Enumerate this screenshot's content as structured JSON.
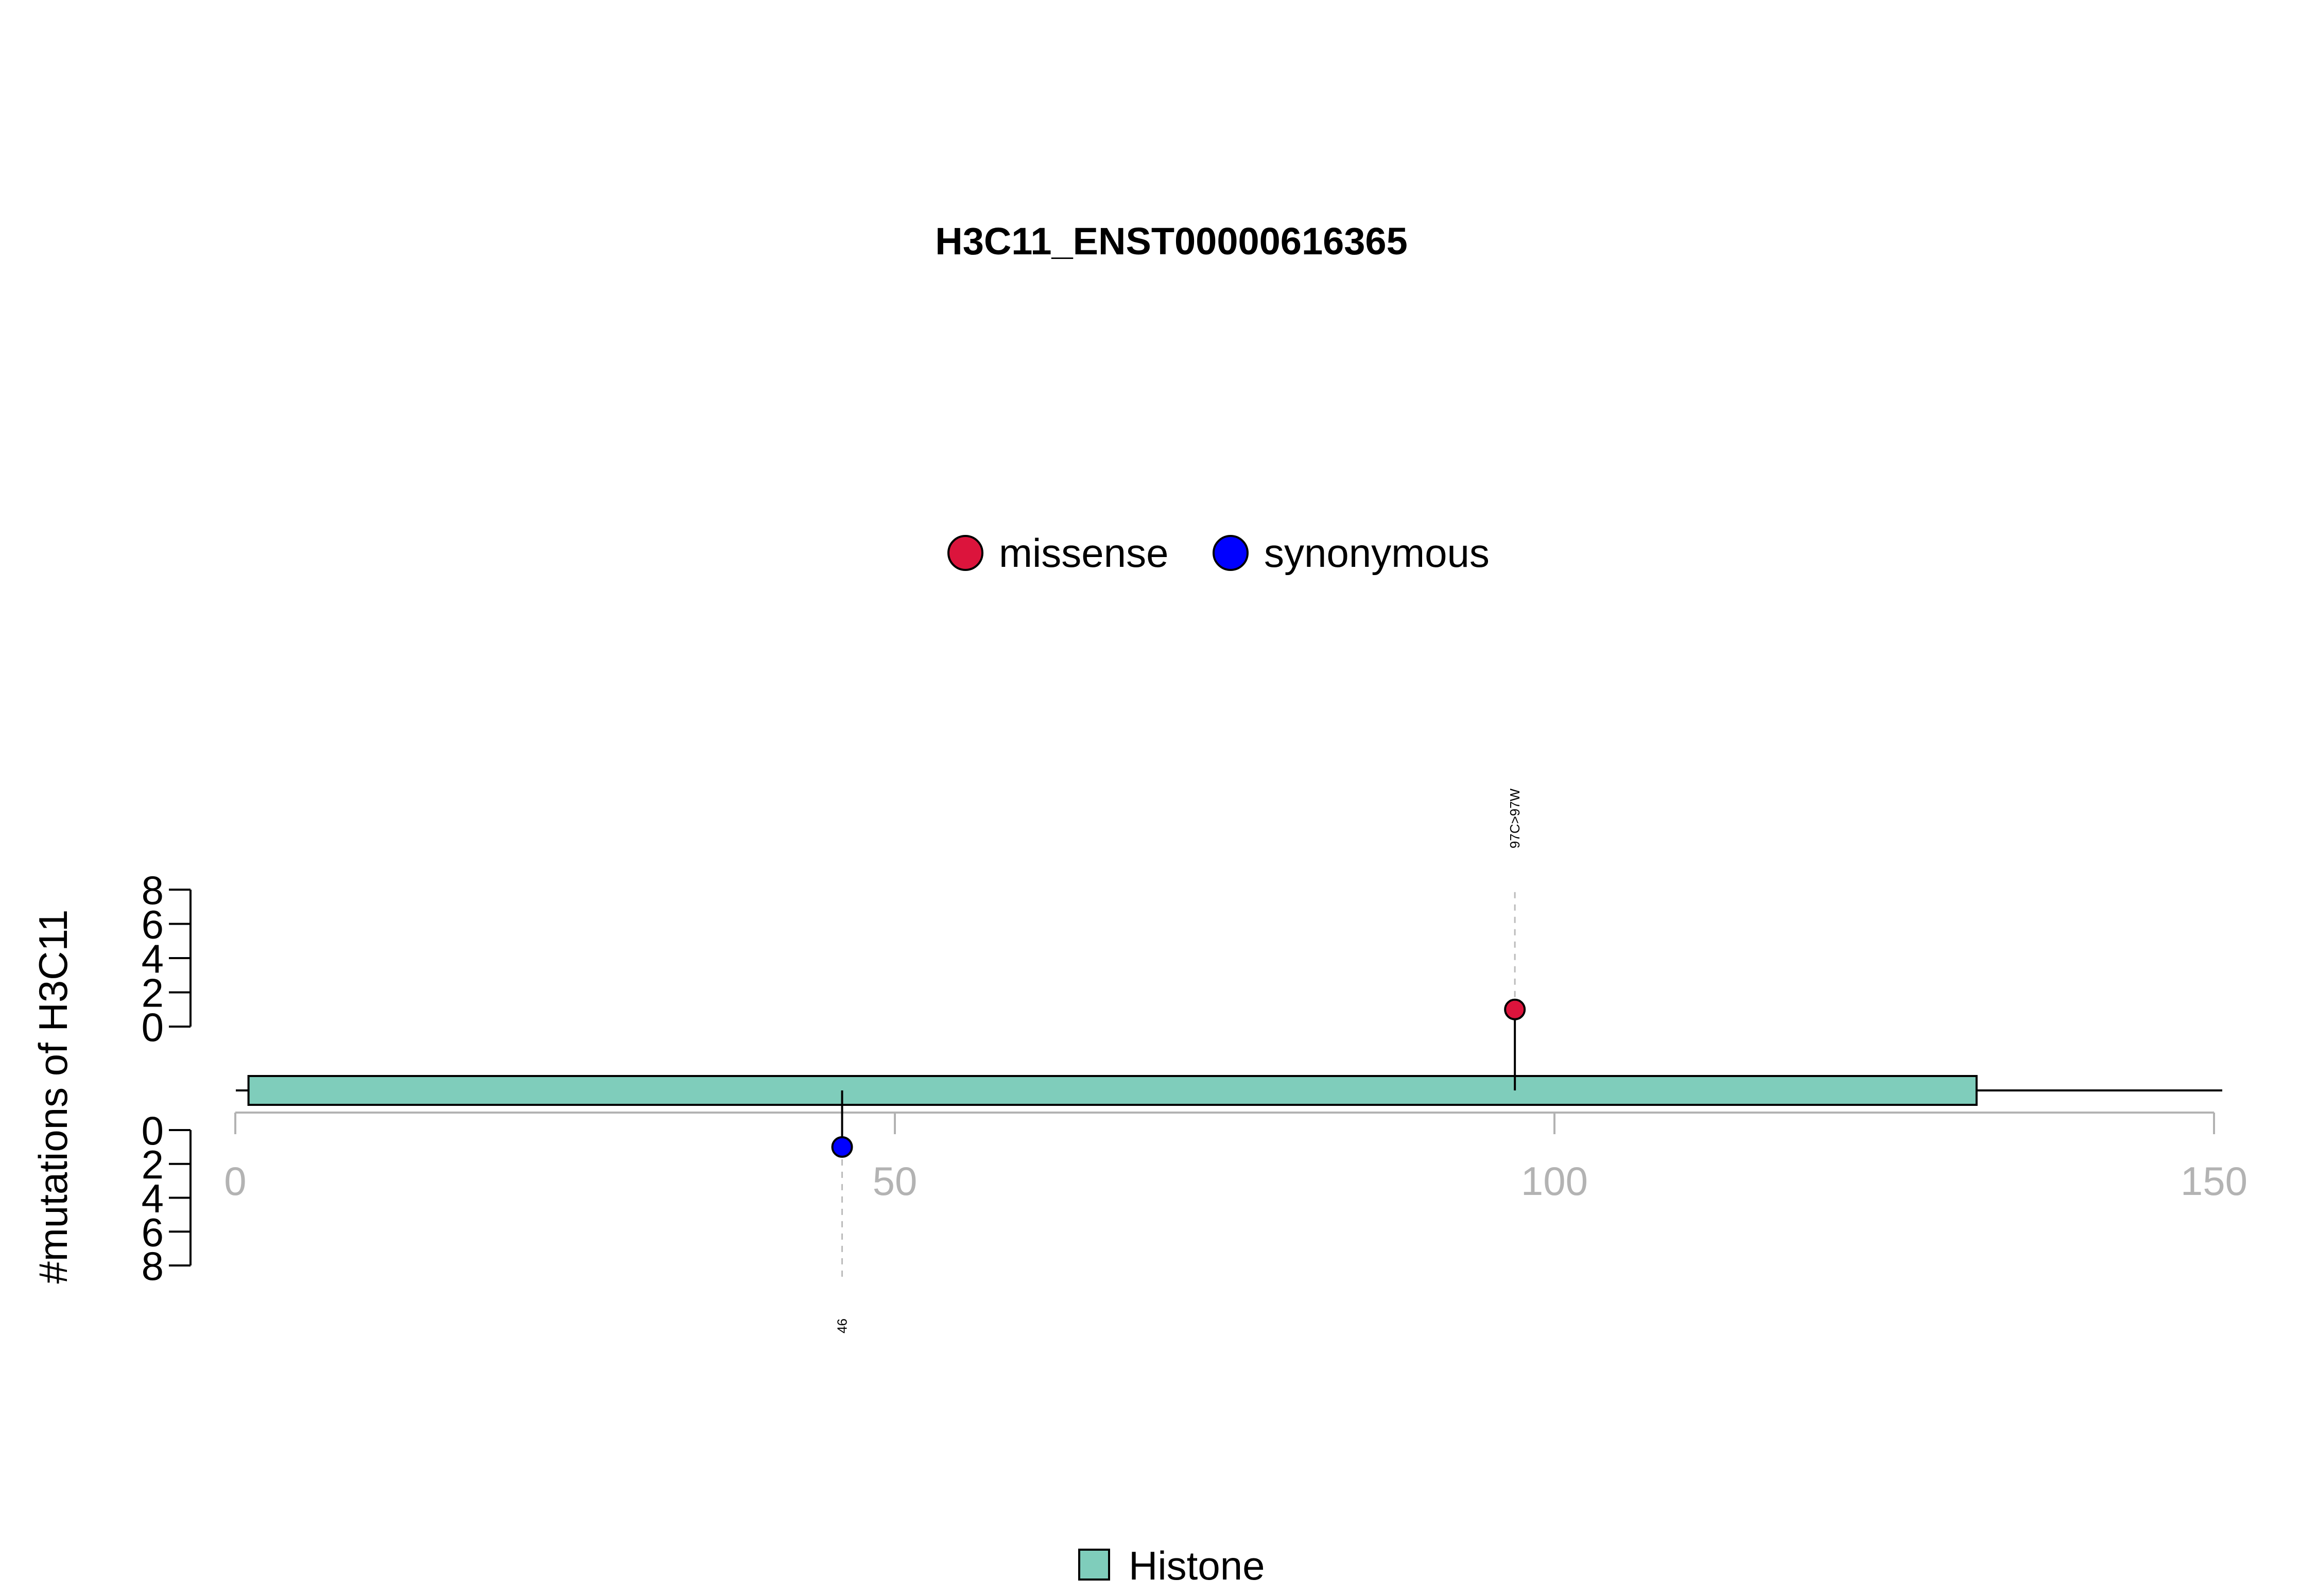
{
  "chart_data": {
    "type": "lollipop",
    "title": "H3C11_ENST00000616365",
    "ylabel": "#mutations of H3C11",
    "xlim": [
      0,
      150
    ],
    "x_ticks": [
      0,
      50,
      100,
      150
    ],
    "ylim": [
      0,
      8
    ],
    "y_ticks": [
      0,
      2,
      4,
      6,
      8
    ],
    "protein_length": 150,
    "legend": {
      "placement": "top-center",
      "items": [
        {
          "name": "missense",
          "color": "#DC143C"
        },
        {
          "name": "synonymous",
          "color": "#0000FF"
        }
      ]
    },
    "domains": [
      {
        "name": "Histone",
        "start": 1,
        "end": 132,
        "color": "#7FCDBB"
      }
    ],
    "mutations": [
      {
        "position": 97,
        "count": 1,
        "type": "missense",
        "color": "#DC143C",
        "side": "top",
        "label": "97C>97W"
      },
      {
        "position": 46,
        "count": 1,
        "type": "synonymous",
        "color": "#0000FF",
        "side": "bottom",
        "label": "46"
      }
    ],
    "domain_legend": [
      {
        "name": "Histone",
        "color": "#7FCDBB"
      }
    ]
  }
}
